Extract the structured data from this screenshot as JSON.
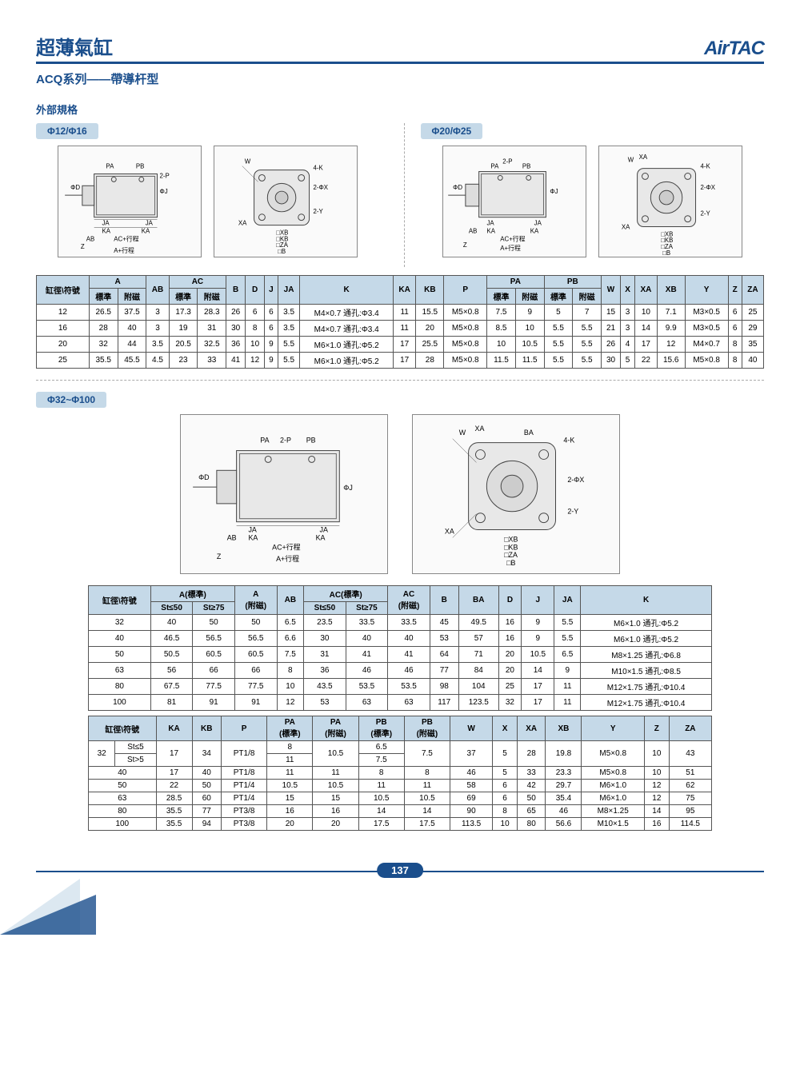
{
  "header": {
    "main_title": "超薄氣缸",
    "logo": "AirTAC",
    "subtitle": "ACQ系列——帶導杆型",
    "section_header": "外部規格"
  },
  "sizes": {
    "s1": "Φ12/Φ16",
    "s2": "Φ20/Φ25",
    "s3": "Φ32~Φ100"
  },
  "diagram_labels": {
    "pa": "PA",
    "pb": "PB",
    "d": "ΦD",
    "j": "ΦJ",
    "ja": "JA",
    "ka": "KA",
    "ab": "AB",
    "z": "Z",
    "a_stroke": "A+行程",
    "ac_stroke": "AC+行程",
    "p2": "2-P",
    "k4": "4-K",
    "x2": "2-ΦX",
    "y2": "2-Y",
    "xb": "□XB",
    "kb": "□KB",
    "za": "□ZA",
    "b": "□B",
    "w": "W",
    "xa": "XA",
    "ba": "BA"
  },
  "table1": {
    "headers": {
      "bore": "缸徑\\符號",
      "a": "A",
      "std": "標準",
      "mag": "附磁",
      "ab": "AB",
      "ac": "AC",
      "b": "B",
      "d": "D",
      "j": "J",
      "ja": "JA",
      "k": "K",
      "ka": "KA",
      "kb": "KB",
      "p": "P",
      "pa": "PA",
      "pb": "PB",
      "w": "W",
      "x": "X",
      "xa": "XA",
      "xb": "XB",
      "y": "Y",
      "z": "Z",
      "za": "ZA"
    },
    "rows": [
      {
        "bore": "12",
        "a_std": "26.5",
        "a_mag": "37.5",
        "ab": "3",
        "ac_std": "17.3",
        "ac_mag": "28.3",
        "b": "26",
        "d": "6",
        "j": "6",
        "ja": "3.5",
        "k": "M4×0.7 通孔:Φ3.4",
        "ka": "11",
        "kb": "15.5",
        "p": "M5×0.8",
        "pa_std": "7.5",
        "pa_mag": "9",
        "pb_std": "5",
        "pb_mag": "7",
        "w": "15",
        "x": "3",
        "xa": "10",
        "xb": "7.1",
        "y": "M3×0.5",
        "z": "6",
        "za": "25"
      },
      {
        "bore": "16",
        "a_std": "28",
        "a_mag": "40",
        "ab": "3",
        "ac_std": "19",
        "ac_mag": "31",
        "b": "30",
        "d": "8",
        "j": "6",
        "ja": "3.5",
        "k": "M4×0.7 通孔:Φ3.4",
        "ka": "11",
        "kb": "20",
        "p": "M5×0.8",
        "pa_std": "8.5",
        "pa_mag": "10",
        "pb_std": "5.5",
        "pb_mag": "5.5",
        "w": "21",
        "x": "3",
        "xa": "14",
        "xb": "9.9",
        "y": "M3×0.5",
        "z": "6",
        "za": "29"
      },
      {
        "bore": "20",
        "a_std": "32",
        "a_mag": "44",
        "ab": "3.5",
        "ac_std": "20.5",
        "ac_mag": "32.5",
        "b": "36",
        "d": "10",
        "j": "9",
        "ja": "5.5",
        "k": "M6×1.0 通孔:Φ5.2",
        "ka": "17",
        "kb": "25.5",
        "p": "M5×0.8",
        "pa_std": "10",
        "pa_mag": "10.5",
        "pb_std": "5.5",
        "pb_mag": "5.5",
        "w": "26",
        "x": "4",
        "xa": "17",
        "xb": "12",
        "y": "M4×0.7",
        "z": "8",
        "za": "35"
      },
      {
        "bore": "25",
        "a_std": "35.5",
        "a_mag": "45.5",
        "ab": "4.5",
        "ac_std": "23",
        "ac_mag": "33",
        "b": "41",
        "d": "12",
        "j": "9",
        "ja": "5.5",
        "k": "M6×1.0 通孔:Φ5.2",
        "ka": "17",
        "kb": "28",
        "p": "M5×0.8",
        "pa_std": "11.5",
        "pa_mag": "11.5",
        "pb_std": "5.5",
        "pb_mag": "5.5",
        "w": "30",
        "x": "5",
        "xa": "22",
        "xb": "15.6",
        "y": "M5×0.8",
        "z": "8",
        "za": "40"
      }
    ]
  },
  "table2": {
    "headers": {
      "bore": "缸徑\\符號",
      "a_std": "A(標準)",
      "st50": "St≤50",
      "st75": "St≥75",
      "a_mag": "A\n(附磁)",
      "ab": "AB",
      "ac_std": "AC(標準)",
      "ac_mag": "AC\n(附磁)",
      "b": "B",
      "ba": "BA",
      "d": "D",
      "j": "J",
      "ja": "JA",
      "k": "K"
    },
    "rows": [
      {
        "bore": "32",
        "a50": "40",
        "a75": "50",
        "a_mag": "50",
        "ab": "6.5",
        "ac50": "23.5",
        "ac75": "33.5",
        "ac_mag": "33.5",
        "b": "45",
        "ba": "49.5",
        "d": "16",
        "j": "9",
        "ja": "5.5",
        "k": "M6×1.0 通孔:Φ5.2"
      },
      {
        "bore": "40",
        "a50": "46.5",
        "a75": "56.5",
        "a_mag": "56.5",
        "ab": "6.6",
        "ac50": "30",
        "ac75": "40",
        "ac_mag": "40",
        "b": "53",
        "ba": "57",
        "d": "16",
        "j": "9",
        "ja": "5.5",
        "k": "M6×1.0 通孔:Φ5.2"
      },
      {
        "bore": "50",
        "a50": "50.5",
        "a75": "60.5",
        "a_mag": "60.5",
        "ab": "7.5",
        "ac50": "31",
        "ac75": "41",
        "ac_mag": "41",
        "b": "64",
        "ba": "71",
        "d": "20",
        "j": "10.5",
        "ja": "6.5",
        "k": "M8×1.25 通孔:Φ6.8"
      },
      {
        "bore": "63",
        "a50": "56",
        "a75": "66",
        "a_mag": "66",
        "ab": "8",
        "ac50": "36",
        "ac75": "46",
        "ac_mag": "46",
        "b": "77",
        "ba": "84",
        "d": "20",
        "j": "14",
        "ja": "9",
        "k": "M10×1.5 通孔:Φ8.5"
      },
      {
        "bore": "80",
        "a50": "67.5",
        "a75": "77.5",
        "a_mag": "77.5",
        "ab": "10",
        "ac50": "43.5",
        "ac75": "53.5",
        "ac_mag": "53.5",
        "b": "98",
        "ba": "104",
        "d": "25",
        "j": "17",
        "ja": "11",
        "k": "M12×1.75 通孔:Φ10.4"
      },
      {
        "bore": "100",
        "a50": "81",
        "a75": "91",
        "a_mag": "91",
        "ab": "12",
        "ac50": "53",
        "ac75": "63",
        "ac_mag": "63",
        "b": "117",
        "ba": "123.5",
        "d": "32",
        "j": "17",
        "ja": "11",
        "k": "M12×1.75 通孔:Φ10.4"
      }
    ]
  },
  "table3": {
    "headers": {
      "bore": "缸徑\\符號",
      "ka": "KA",
      "kb": "KB",
      "p": "P",
      "pa_std": "PA\n(標準)",
      "pa_mag": "PA\n(附磁)",
      "pb_std": "PB\n(標準)",
      "pb_mag": "PB\n(附磁)",
      "w": "W",
      "x": "X",
      "xa": "XA",
      "xb": "XB",
      "y": "Y",
      "z": "Z",
      "za": "ZA",
      "st5": "St≤5",
      "stg5": "St>5"
    },
    "rows": [
      {
        "bore": "32",
        "variant": "St≤5",
        "ka": "17",
        "kb": "34",
        "p": "PT1/8",
        "pa_std": "8",
        "pa_mag": "10.5",
        "pb_std": "6.5",
        "pb_mag": "7.5",
        "w": "37",
        "x": "5",
        "xa": "28",
        "xb": "19.8",
        "y": "M5×0.8",
        "z": "10",
        "za": "43"
      },
      {
        "bore": "32",
        "variant": "St>5",
        "ka": "17",
        "kb": "34",
        "p": "PT1/8",
        "pa_std": "11",
        "pa_mag": "10.5",
        "pb_std": "7.5",
        "pb_mag": "7.5",
        "w": "37",
        "x": "5",
        "xa": "28",
        "xb": "19.8",
        "y": "M5×0.8",
        "z": "10",
        "za": "43"
      },
      {
        "bore": "40",
        "ka": "17",
        "kb": "40",
        "p": "PT1/8",
        "pa_std": "11",
        "pa_mag": "11",
        "pb_std": "8",
        "pb_mag": "8",
        "w": "46",
        "x": "5",
        "xa": "33",
        "xb": "23.3",
        "y": "M5×0.8",
        "z": "10",
        "za": "51"
      },
      {
        "bore": "50",
        "ka": "22",
        "kb": "50",
        "p": "PT1/4",
        "pa_std": "10.5",
        "pa_mag": "10.5",
        "pb_std": "11",
        "pb_mag": "11",
        "w": "58",
        "x": "6",
        "xa": "42",
        "xb": "29.7",
        "y": "M6×1.0",
        "z": "12",
        "za": "62"
      },
      {
        "bore": "63",
        "ka": "28.5",
        "kb": "60",
        "p": "PT1/4",
        "pa_std": "15",
        "pa_mag": "15",
        "pb_std": "10.5",
        "pb_mag": "10.5",
        "w": "69",
        "x": "6",
        "xa": "50",
        "xb": "35.4",
        "y": "M6×1.0",
        "z": "12",
        "za": "75"
      },
      {
        "bore": "80",
        "ka": "35.5",
        "kb": "77",
        "p": "PT3/8",
        "pa_std": "16",
        "pa_mag": "16",
        "pb_std": "14",
        "pb_mag": "14",
        "w": "90",
        "x": "8",
        "xa": "65",
        "xb": "46",
        "y": "M8×1.25",
        "z": "14",
        "za": "95"
      },
      {
        "bore": "100",
        "ka": "35.5",
        "kb": "94",
        "p": "PT3/8",
        "pa_std": "20",
        "pa_mag": "20",
        "pb_std": "17.5",
        "pb_mag": "17.5",
        "w": "113.5",
        "x": "10",
        "xa": "80",
        "xb": "56.6",
        "y": "M10×1.5",
        "z": "16",
        "za": "114.5"
      }
    ]
  },
  "page_number": "137",
  "colors": {
    "brand": "#1a4e8c",
    "header_bg": "#c5d9e8",
    "border": "#555555"
  }
}
